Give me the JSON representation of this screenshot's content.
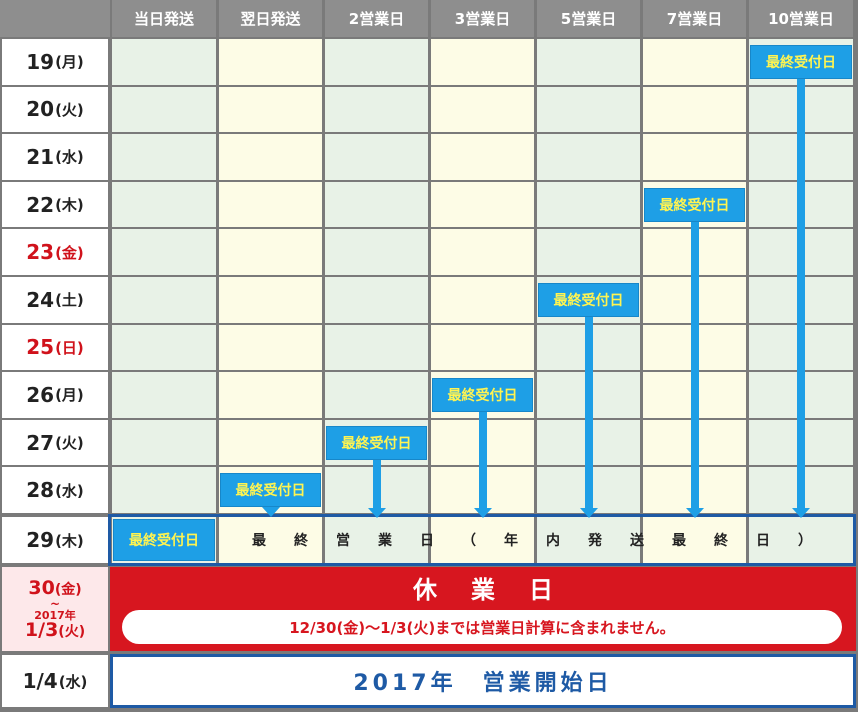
{
  "columns": [
    "当日発送",
    "翌日発送",
    "2営業日",
    "3営業日",
    "5営業日",
    "7営業日",
    "10営業日"
  ],
  "dates": [
    {
      "day": "19",
      "dow": "(月)",
      "holiday": false
    },
    {
      "day": "20",
      "dow": "(火)",
      "holiday": false
    },
    {
      "day": "21",
      "dow": "(水)",
      "holiday": false
    },
    {
      "day": "22",
      "dow": "(木)",
      "holiday": false
    },
    {
      "day": "23",
      "dow": "(金)",
      "holiday": true
    },
    {
      "day": "24",
      "dow": "(土)",
      "holiday": false
    },
    {
      "day": "25",
      "dow": "(日)",
      "holiday": true
    },
    {
      "day": "26",
      "dow": "(月)",
      "holiday": false
    },
    {
      "day": "27",
      "dow": "(火)",
      "holiday": false
    },
    {
      "day": "28",
      "dow": "(水)",
      "holiday": false
    },
    {
      "day": "29",
      "dow": "(木)",
      "holiday": false
    }
  ],
  "deadline_label": "最終受付日",
  "deadline_row_by_column": [
    10,
    9,
    8,
    7,
    5,
    3,
    0
  ],
  "row29_text": [
    "最",
    "終",
    "営",
    "業",
    "日",
    "（",
    "年",
    "内",
    "発",
    "送",
    "最",
    "終",
    "日",
    "）"
  ],
  "holiday": {
    "date_start": "30",
    "date_start_dow": "(金)",
    "tilde": "~",
    "year": "2017年",
    "date_end": "1/3",
    "date_end_dow": "(火)",
    "title": "休業日",
    "note": "12/30(金)～1/3(火)までは営業日計算に含まれません。"
  },
  "opening": {
    "date": "1/4",
    "dow": "(水)",
    "text": "2017年　営業開始日"
  },
  "colors": {
    "deadline_badge": "#1e9fe6",
    "deadline_text": "#fff451",
    "holiday_red": "#d7161f",
    "frame_blue": "#1e5aa5"
  }
}
